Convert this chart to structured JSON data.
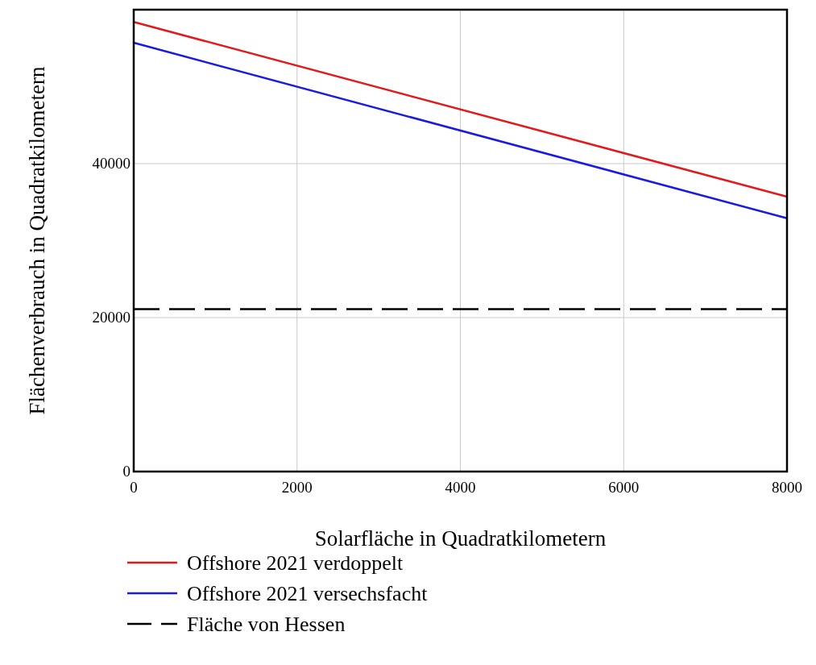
{
  "chart_data": {
    "type": "line",
    "xlabel": "Solarfläche in Quadratkilometern",
    "ylabel": "Flächenverbrauch in Quadratkilometern",
    "x": [
      0,
      8000
    ],
    "series": [
      {
        "name": "Offshore 2021 verdoppelt",
        "color": "#e31a1c",
        "values": [
          58400,
          35700
        ]
      },
      {
        "name": "Offshore 2021 versechsfacht",
        "color": "#1a1ae0",
        "values": [
          55700,
          32900
        ]
      },
      {
        "name": "Fläche von Hessen",
        "color": "#000000",
        "values": [
          21100,
          21100
        ],
        "line_style": "dashed"
      }
    ],
    "xlim": [
      0,
      8000
    ],
    "xticks": [
      0,
      2000,
      4000,
      6000,
      8000
    ],
    "ylim": [
      0,
      60000
    ],
    "yticks": [
      0,
      20000,
      40000
    ],
    "grid": true,
    "legend": "bottom",
    "marker": "none"
  }
}
